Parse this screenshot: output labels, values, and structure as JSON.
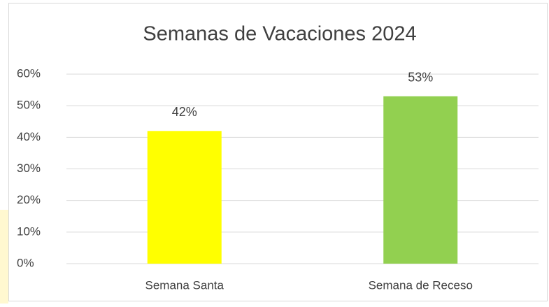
{
  "chart_data": {
    "type": "bar",
    "title": "Semanas de Vacaciones 2024",
    "categories": [
      "Semana Santa",
      "Semana de Receso"
    ],
    "values": [
      42,
      53
    ],
    "value_labels": [
      "42%",
      "53%"
    ],
    "colors": [
      "#ffff00",
      "#92d050"
    ],
    "ylim": [
      0,
      60
    ],
    "yticks": [
      {
        "value": 0,
        "label": "0%"
      },
      {
        "value": 10,
        "label": "10%"
      },
      {
        "value": 20,
        "label": "20%"
      },
      {
        "value": 30,
        "label": "30%"
      },
      {
        "value": 40,
        "label": "40%"
      },
      {
        "value": 50,
        "label": "50%"
      },
      {
        "value": 60,
        "label": "60%"
      }
    ],
    "grid": true
  }
}
